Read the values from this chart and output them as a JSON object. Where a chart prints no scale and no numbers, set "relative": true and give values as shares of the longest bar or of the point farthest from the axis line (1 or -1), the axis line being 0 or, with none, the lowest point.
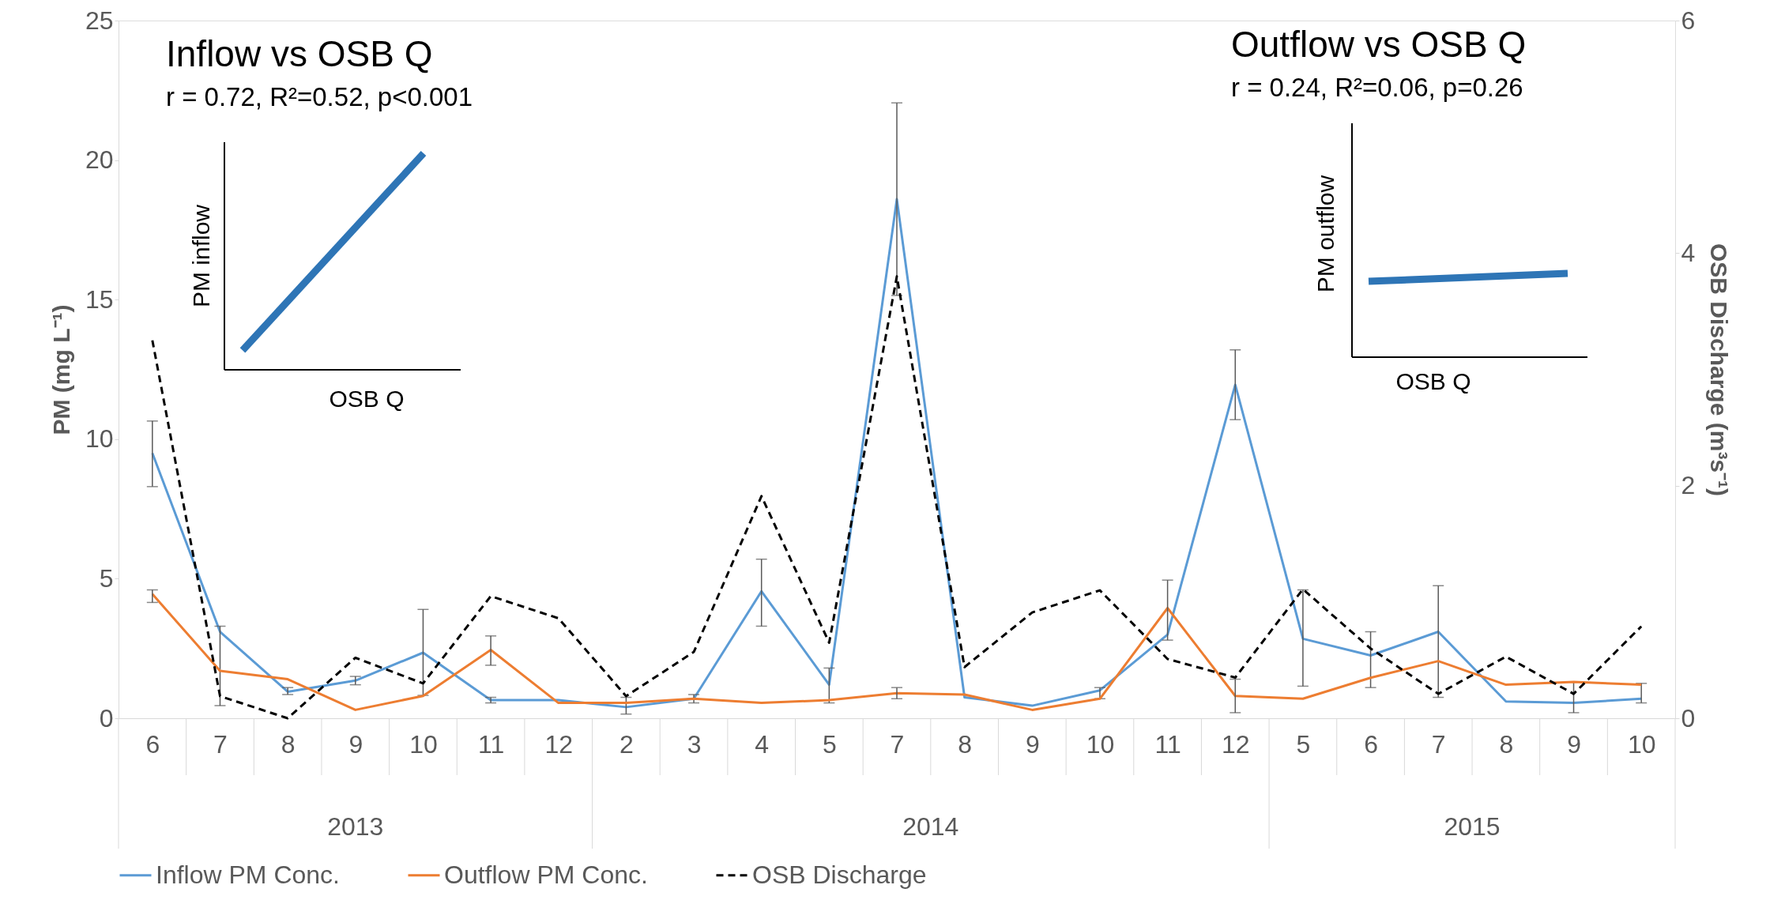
{
  "chart_data": [
    {
      "type": "line",
      "ylabel": "PM (mg L⁻¹)",
      "y2label": "OSB Discharge (m³s⁻¹)",
      "categories": [
        "6",
        "7",
        "8",
        "9",
        "10",
        "11",
        "12",
        "2",
        "3",
        "4",
        "5",
        "7",
        "8",
        "9",
        "10",
        "11",
        "12",
        "5",
        "6",
        "7",
        "8",
        "9",
        "10"
      ],
      "series": [
        {
          "name": "Inflow PM Conc.",
          "color": "#5b9bd5",
          "values": [
            9.5,
            3.1,
            0.95,
            1.35,
            2.35,
            0.65,
            0.65,
            0.4,
            0.7,
            4.55,
            1.2,
            18.6,
            0.75,
            0.45,
            1.0,
            3.0,
            11.95,
            2.85,
            2.25,
            3.1,
            0.6,
            0.55,
            0.7
          ],
          "errors": [
            [
              8.3,
              10.65
            ],
            [
              0.45,
              3.3
            ],
            [
              0.85,
              1.1
            ],
            [
              1.2,
              1.5
            ],
            [
              0.82,
              3.9
            ],
            [
              0.55,
              0.75
            ],
            null,
            [
              0.15,
              0.75
            ],
            [
              0.55,
              0.85
            ],
            [
              3.3,
              5.7
            ],
            [
              0.55,
              1.8
            ],
            [
              15.15,
              22.05
            ],
            null,
            null,
            [
              0.7,
              1.1
            ],
            null,
            [
              10.7,
              13.2
            ],
            [
              1.15,
              4.6
            ],
            [
              1.1,
              3.1
            ],
            [
              0.75,
              4.75
            ],
            null,
            [
              0.2,
              1.3
            ],
            [
              0.55,
              1.25
            ]
          ]
        },
        {
          "name": "Outflow PM Conc.",
          "color": "#ed7d31",
          "values": [
            4.45,
            1.7,
            1.4,
            0.3,
            0.8,
            2.45,
            0.55,
            0.55,
            0.7,
            0.55,
            0.65,
            0.9,
            0.85,
            0.3,
            0.7,
            3.95,
            0.8,
            0.7,
            1.45,
            2.05,
            1.2,
            1.3,
            1.2
          ],
          "errors": [
            [
              4.15,
              4.6
            ],
            null,
            null,
            null,
            null,
            [
              1.9,
              2.95
            ],
            null,
            null,
            null,
            null,
            null,
            [
              0.7,
              1.1
            ],
            null,
            null,
            null,
            [
              2.8,
              4.95
            ],
            [
              0.2,
              1.4
            ],
            null,
            null,
            null,
            null,
            null,
            null
          ]
        },
        {
          "name": "OSB Discharge",
          "color": "#000000",
          "axis": "y2",
          "line_style": "dashed",
          "values": [
            3.25,
            0.19,
            0.0,
            0.52,
            0.3,
            1.05,
            0.86,
            0.19,
            0.57,
            1.91,
            0.65,
            3.8,
            0.44,
            0.91,
            1.1,
            0.51,
            0.35,
            1.11,
            0.6,
            0.21,
            0.53,
            0.21,
            0.79
          ]
        }
      ],
      "ylim": [
        0,
        25
      ],
      "yticks": [
        0,
        5,
        10,
        15,
        20,
        25
      ],
      "y2lim": [
        0,
        6
      ],
      "y2ticks": [
        0,
        2,
        4,
        6
      ],
      "annotations": [
        "2013",
        "2014",
        "2015"
      ],
      "legend": "bottom",
      "grid": false
    },
    {
      "type": "line",
      "relative": true,
      "title": "Inflow vs OSB Q",
      "subtitle": "r = 0.72, R²=0.52, p<0.001",
      "xlabel": "OSB Q",
      "ylabel": "PM inflow",
      "categories": [
        null,
        null
      ],
      "series": [
        {
          "color": "#2e75b6",
          "values": [
            0.09,
            1
          ]
        }
      ]
    },
    {
      "type": "line",
      "relative": true,
      "title": "Outflow vs OSB Q",
      "subtitle": "r = 0.24, R²=0.06, p=0.26",
      "xlabel": "OSB Q",
      "ylabel": "PM outflow",
      "categories": [
        null,
        null
      ],
      "series": [
        {
          "color": "#2e75b6",
          "values": [
            0.905,
            1
          ]
        }
      ]
    }
  ]
}
